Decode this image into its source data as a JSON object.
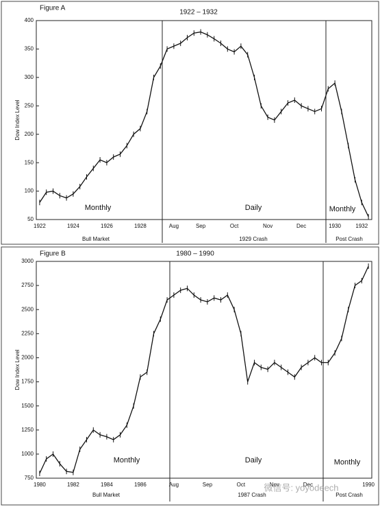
{
  "chart_data": [
    {
      "type": "line",
      "label": "Figure A",
      "title": "1922 – 1932",
      "ylabel": "Dow Index Level",
      "categories": [
        "1922",
        null,
        null,
        null,
        null,
        "1924",
        null,
        null,
        null,
        null,
        "1926",
        null,
        null,
        null,
        null,
        "1928",
        null,
        null,
        null,
        null,
        "Aug",
        null,
        null,
        null,
        "Sep",
        null,
        null,
        null,
        null,
        "Oct",
        null,
        null,
        null,
        null,
        "Nov",
        null,
        null,
        null,
        null,
        "Dec",
        null,
        null,
        null,
        null,
        "1930",
        null,
        null,
        null,
        "1932",
        null
      ],
      "values": [
        80,
        98,
        100,
        92,
        88,
        95,
        108,
        125,
        140,
        155,
        150,
        160,
        165,
        180,
        200,
        210,
        240,
        300,
        320,
        350,
        355,
        360,
        370,
        378,
        380,
        375,
        368,
        360,
        350,
        345,
        355,
        340,
        300,
        250,
        230,
        225,
        240,
        255,
        260,
        250,
        245,
        240,
        245,
        280,
        290,
        240,
        180,
        120,
        80,
        55
      ],
      "color": "#111111",
      "ylim": [
        50,
        400
      ],
      "yticks": [
        50,
        100,
        150,
        200,
        250,
        300,
        350,
        400
      ],
      "annotations": [
        "Monthly",
        "Daily",
        "Monthly"
      ],
      "section_labels": [
        "Bull Market",
        "1929 Crash",
        "Post Crash"
      ]
    },
    {
      "type": "line",
      "label": "Figure B",
      "title": "1980 – 1990",
      "ylabel": "Dow Index Level",
      "categories": [
        "1980",
        null,
        null,
        null,
        null,
        "1982",
        null,
        null,
        null,
        null,
        "1984",
        null,
        null,
        null,
        null,
        "1986",
        null,
        null,
        null,
        null,
        "Aug",
        null,
        null,
        null,
        null,
        "Sep",
        null,
        null,
        null,
        null,
        "Oct",
        null,
        null,
        null,
        null,
        "Nov",
        null,
        null,
        null,
        null,
        "Dec",
        null,
        null,
        null,
        null,
        null,
        null,
        null,
        null,
        "1990"
      ],
      "values": [
        800,
        950,
        1000,
        900,
        820,
        810,
        1050,
        1150,
        1250,
        1200,
        1180,
        1150,
        1200,
        1300,
        1500,
        1800,
        1850,
        2250,
        2400,
        2600,
        2650,
        2700,
        2720,
        2650,
        2600,
        2580,
        2620,
        2600,
        2650,
        2500,
        2250,
        1750,
        1950,
        1900,
        1880,
        1950,
        1900,
        1850,
        1800,
        1900,
        1950,
        2000,
        1950,
        1950,
        2050,
        2200,
        2500,
        2750,
        2800,
        2950
      ],
      "color": "#111111",
      "ylim": [
        750,
        3000
      ],
      "yticks": [
        750,
        1000,
        1250,
        1500,
        1750,
        2000,
        2250,
        2500,
        2750,
        3000
      ],
      "annotations": [
        "Monthly",
        "Daily",
        "Monthly"
      ],
      "section_labels": [
        "Bull Market",
        "1987 Crash",
        "Post Crash"
      ],
      "watermark": "微信号: yoyodeech"
    }
  ]
}
